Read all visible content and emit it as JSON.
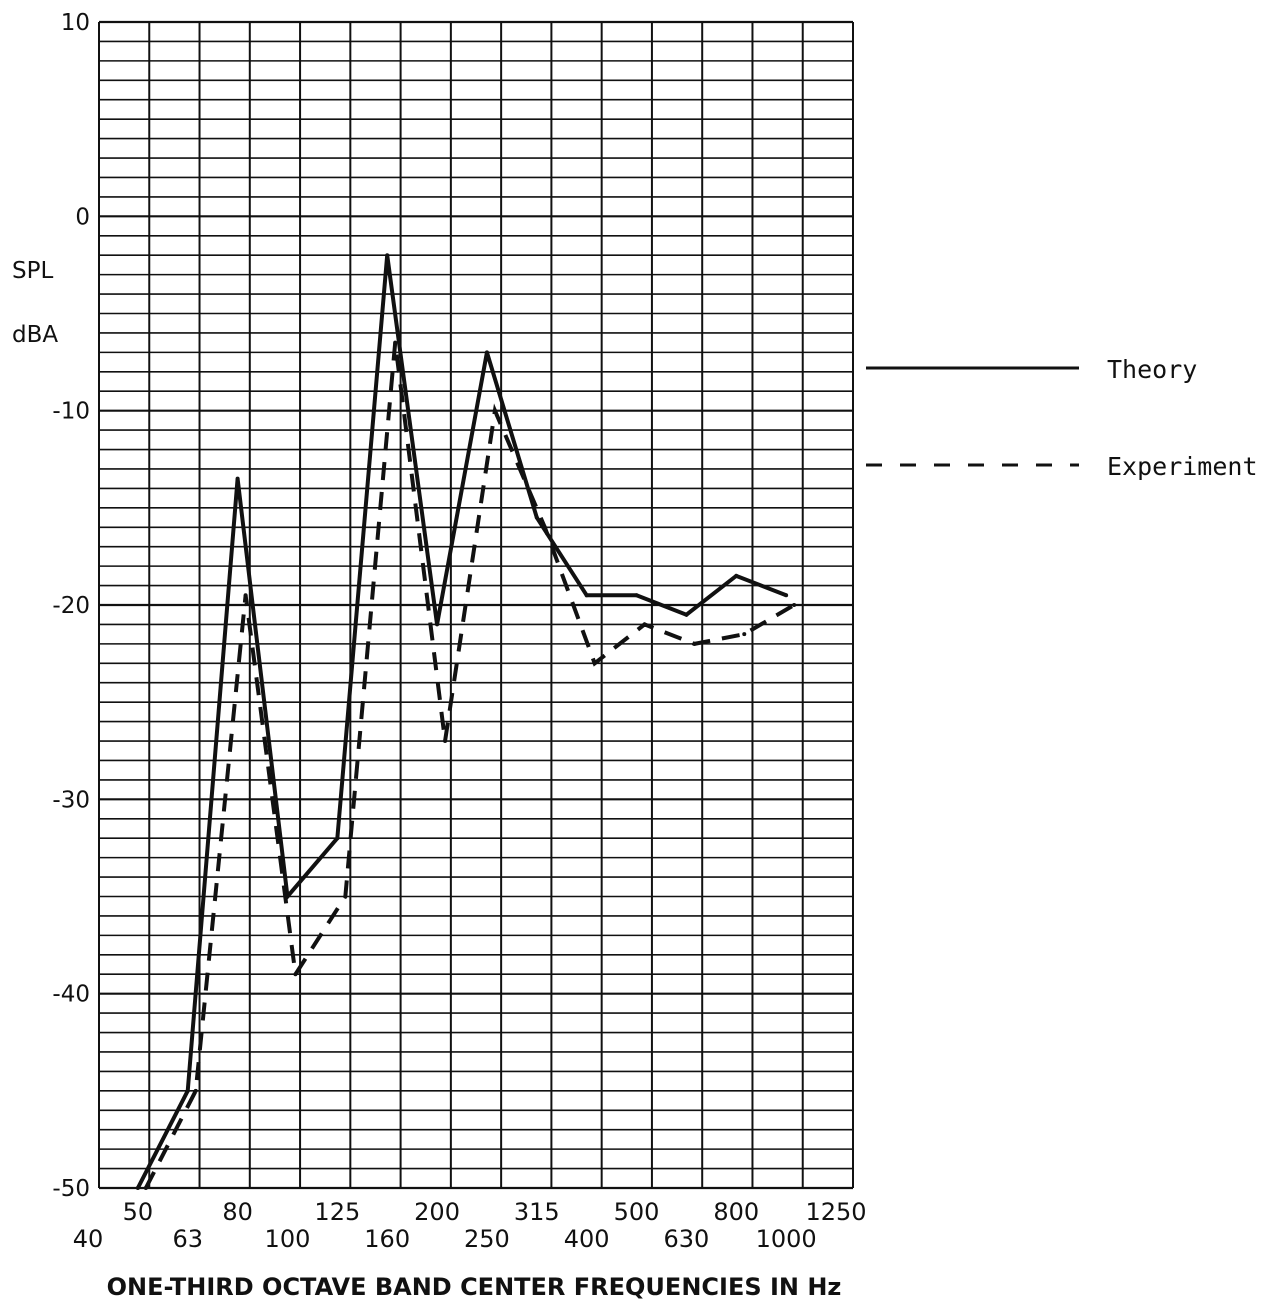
{
  "chart_data": {
    "type": "line",
    "title": "",
    "xlabel": "ONE-THIRD OCTAVE BAND CENTER FREQUENCIES IN Hz",
    "ylabel_line1": "SPL",
    "ylabel_line2": "dBA",
    "ylim": [
      -50,
      10
    ],
    "y_ticks": [
      10,
      0,
      -10,
      -20,
      -30,
      -40,
      -50
    ],
    "y_tick_labels": [
      "10",
      "0",
      "-10",
      "-20",
      "-30",
      "-40",
      "-50"
    ],
    "categories": [
      "40",
      "50",
      "63",
      "80",
      "100",
      "125",
      "160",
      "200",
      "250",
      "315",
      "400",
      "500",
      "630",
      "800",
      "1000",
      "1250"
    ],
    "grid": true,
    "legend_position": "right",
    "series": [
      {
        "name": "Theory",
        "style": "solid",
        "x": [
          "50",
          "63",
          "80",
          "100",
          "125",
          "160",
          "200",
          "250",
          "315",
          "400",
          "500",
          "630",
          "800",
          "1000"
        ],
        "values": [
          -50,
          -45,
          -13.5,
          -35,
          -32,
          -2,
          -21,
          -7,
          -15.5,
          -19.5,
          -19.5,
          -20.5,
          -18.5,
          -19.5
        ]
      },
      {
        "name": "Experiment",
        "style": "dashed",
        "x": [
          "50",
          "63",
          "80",
          "100",
          "125",
          "160",
          "200",
          "250",
          "315",
          "400",
          "500",
          "630",
          "800",
          "1000"
        ],
        "values": [
          -50,
          -45,
          -19.5,
          -39,
          -35,
          -6.5,
          -27,
          -10,
          -16,
          -23,
          -21,
          -22,
          -21.5,
          -20
        ]
      }
    ]
  }
}
